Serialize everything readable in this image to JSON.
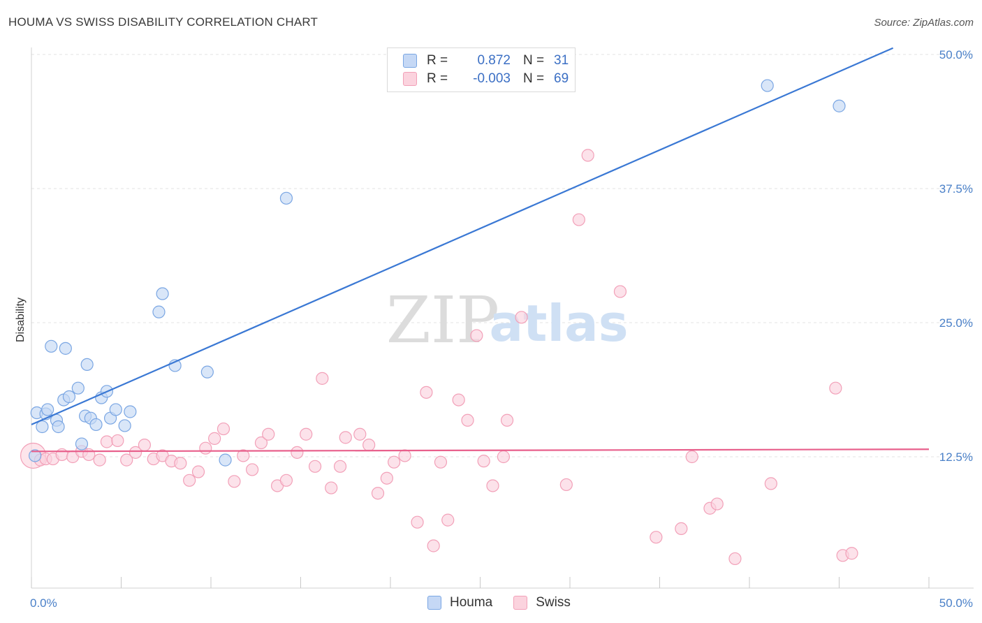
{
  "title": "HOUMA VS SWISS DISABILITY CORRELATION CHART",
  "source": "Source: ZipAtlas.com",
  "watermark": {
    "zip": "ZIP",
    "atlas": "atlas"
  },
  "legend": {
    "rows": [
      {
        "r_label": "R =",
        "r_value": "0.872",
        "n_label": "N =",
        "n_value": "31",
        "color": "#7aa6e3",
        "fill": "#c5d8f5"
      },
      {
        "r_label": "R =",
        "r_value": "-0.003",
        "n_label": "N =",
        "n_value": "69",
        "color": "#f2a0b8",
        "fill": "#fbd3de"
      }
    ]
  },
  "bottom_legend": [
    {
      "label": "Houma",
      "color": "#7aa6e3",
      "fill": "#c5d8f5"
    },
    {
      "label": "Swiss",
      "color": "#f2a0b8",
      "fill": "#fbd3de"
    }
  ],
  "chart_data": {
    "type": "scatter",
    "title": "HOUMA VS SWISS DISABILITY CORRELATION CHART",
    "xlabel": "",
    "ylabel": "Disability",
    "xlim": [
      0,
      50
    ],
    "ylim": [
      0,
      50
    ],
    "x_tick_labels": [
      {
        "value": 0,
        "label": "0.0%"
      },
      {
        "value": 50,
        "label": "50.0%"
      }
    ],
    "y_tick_labels": [
      {
        "value": 12.5,
        "label": "12.5%"
      },
      {
        "value": 25.0,
        "label": "25.0%"
      },
      {
        "value": 37.5,
        "label": "37.5%"
      },
      {
        "value": 50.0,
        "label": "50.0%"
      }
    ],
    "series": [
      {
        "name": "Houma",
        "color": "#4a86d9",
        "fill": "#c5d8f5",
        "stroke": "#7aa6e3",
        "trend": {
          "x0": 0,
          "y0": 15.5,
          "x1": 48.0,
          "y1": 50.6,
          "color": "#3a78d4"
        },
        "points": [
          [
            0.2,
            12.6
          ],
          [
            0.3,
            16.6
          ],
          [
            0.6,
            15.3
          ],
          [
            0.8,
            16.5
          ],
          [
            0.9,
            16.9
          ],
          [
            1.1,
            22.8
          ],
          [
            1.4,
            15.9
          ],
          [
            1.5,
            15.3
          ],
          [
            1.8,
            17.8
          ],
          [
            1.9,
            22.6
          ],
          [
            2.1,
            18.1
          ],
          [
            2.6,
            18.9
          ],
          [
            2.8,
            13.7
          ],
          [
            3.0,
            16.3
          ],
          [
            3.1,
            21.1
          ],
          [
            3.3,
            16.1
          ],
          [
            3.6,
            15.5
          ],
          [
            3.9,
            18.0
          ],
          [
            4.2,
            18.6
          ],
          [
            4.4,
            16.1
          ],
          [
            4.7,
            16.9
          ],
          [
            5.2,
            15.4
          ],
          [
            5.5,
            16.7
          ],
          [
            7.1,
            26.0
          ],
          [
            7.3,
            27.7
          ],
          [
            8.0,
            21.0
          ],
          [
            9.8,
            20.4
          ],
          [
            10.8,
            12.2
          ],
          [
            14.2,
            36.6
          ],
          [
            41.0,
            47.1
          ],
          [
            45.0,
            45.2
          ]
        ]
      },
      {
        "name": "Swiss",
        "color": "#e85d8a",
        "fill": "#fbd3de",
        "stroke": "#f2a0b8",
        "trend": {
          "x0": 0,
          "y0": 13.0,
          "x1": 50.0,
          "y1": 13.2,
          "color": "#e8608c"
        },
        "big_point": [
          0.1,
          12.6
        ],
        "points": [
          [
            0.5,
            12.2
          ],
          [
            0.8,
            12.3
          ],
          [
            1.2,
            12.3
          ],
          [
            1.7,
            12.7
          ],
          [
            2.3,
            12.5
          ],
          [
            2.8,
            13.0
          ],
          [
            3.2,
            12.7
          ],
          [
            3.8,
            12.2
          ],
          [
            4.2,
            13.9
          ],
          [
            4.8,
            14.0
          ],
          [
            5.3,
            12.2
          ],
          [
            5.8,
            12.9
          ],
          [
            6.3,
            13.6
          ],
          [
            6.8,
            12.3
          ],
          [
            7.3,
            12.6
          ],
          [
            7.8,
            12.1
          ],
          [
            8.3,
            11.9
          ],
          [
            8.8,
            10.3
          ],
          [
            9.3,
            11.1
          ],
          [
            9.7,
            13.3
          ],
          [
            10.2,
            14.2
          ],
          [
            10.7,
            15.1
          ],
          [
            11.3,
            10.2
          ],
          [
            11.8,
            12.6
          ],
          [
            12.3,
            11.3
          ],
          [
            12.8,
            13.8
          ],
          [
            13.2,
            14.6
          ],
          [
            13.7,
            9.8
          ],
          [
            14.2,
            10.3
          ],
          [
            14.8,
            12.9
          ],
          [
            15.3,
            14.6
          ],
          [
            15.8,
            11.6
          ],
          [
            16.2,
            19.8
          ],
          [
            16.7,
            9.6
          ],
          [
            17.2,
            11.6
          ],
          [
            17.5,
            14.3
          ],
          [
            18.3,
            14.6
          ],
          [
            18.8,
            13.6
          ],
          [
            19.3,
            9.1
          ],
          [
            19.8,
            10.5
          ],
          [
            20.2,
            12.0
          ],
          [
            20.8,
            12.6
          ],
          [
            21.5,
            6.4
          ],
          [
            22.0,
            18.5
          ],
          [
            22.4,
            4.2
          ],
          [
            22.8,
            12.0
          ],
          [
            23.2,
            6.6
          ],
          [
            23.8,
            17.8
          ],
          [
            24.3,
            15.9
          ],
          [
            24.8,
            23.8
          ],
          [
            25.2,
            12.1
          ],
          [
            25.7,
            9.8
          ],
          [
            26.3,
            12.5
          ],
          [
            26.5,
            15.9
          ],
          [
            27.3,
            25.5
          ],
          [
            29.8,
            9.9
          ],
          [
            30.5,
            34.6
          ],
          [
            31.0,
            40.6
          ],
          [
            32.8,
            27.9
          ],
          [
            34.8,
            5.0
          ],
          [
            36.2,
            5.8
          ],
          [
            36.8,
            12.5
          ],
          [
            37.8,
            7.7
          ],
          [
            38.2,
            8.1
          ],
          [
            39.2,
            3.0
          ],
          [
            41.2,
            10.0
          ],
          [
            44.8,
            18.9
          ],
          [
            45.2,
            3.3
          ],
          [
            45.7,
            3.5
          ]
        ]
      }
    ]
  }
}
